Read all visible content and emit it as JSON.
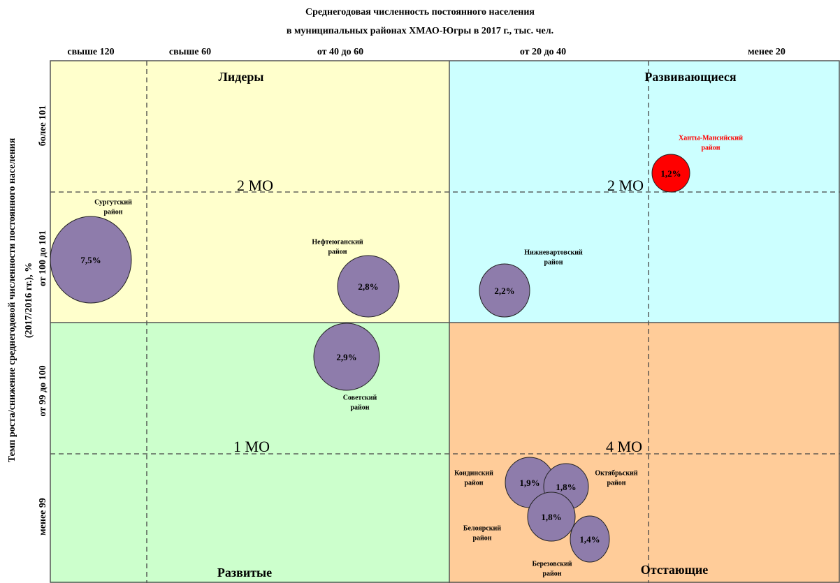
{
  "title": [
    "Среднегодовая численность постоянного населения",
    "в  муниципальных районах ХМАО-Югры в 2017 г., тыс. чел."
  ],
  "columns": [
    "свыше 120",
    "свыше 60",
    "от 40 до 60",
    "от 20 до 40",
    "менее 20"
  ],
  "rows": [
    "более 101",
    "от 100 до 101",
    "от 99 до 100",
    "менее 99"
  ],
  "y_axis_title": [
    "Темп роста/снижение среднегодовой численности постоянного населения",
    "(2017/2016 гг.), %"
  ],
  "quadrants": [
    {
      "name": "Лидеры",
      "count": "2 МО"
    },
    {
      "name": "Развивающиеся",
      "count": "2 МО"
    },
    {
      "name": "Развитые",
      "count": "1 МО"
    },
    {
      "name": "Отстающие",
      "count": "4 МО"
    }
  ],
  "nodes": [
    {
      "label": [
        "Сургутский",
        "район"
      ],
      "value": "7,5%"
    },
    {
      "label": [
        "Нефтеюганский",
        "район"
      ],
      "value": "2,8%"
    },
    {
      "label": [
        "Нижневартовский",
        "район"
      ],
      "value": "2,2%"
    },
    {
      "label": [
        "Ханты-Мансийский",
        "район"
      ],
      "value": "1,2%"
    },
    {
      "label": [
        "Советский",
        "район"
      ],
      "value": "2,9%"
    },
    {
      "label": [
        "Кондинский",
        "район"
      ],
      "value": "1,9%"
    },
    {
      "label": [
        "Октябрьский",
        "район"
      ],
      "value": "1,8%"
    },
    {
      "label": [
        "Белоярский",
        "район"
      ],
      "value": "1,8%"
    },
    {
      "label": [
        "Березовский",
        "район"
      ],
      "value": "1,4%"
    }
  ]
}
